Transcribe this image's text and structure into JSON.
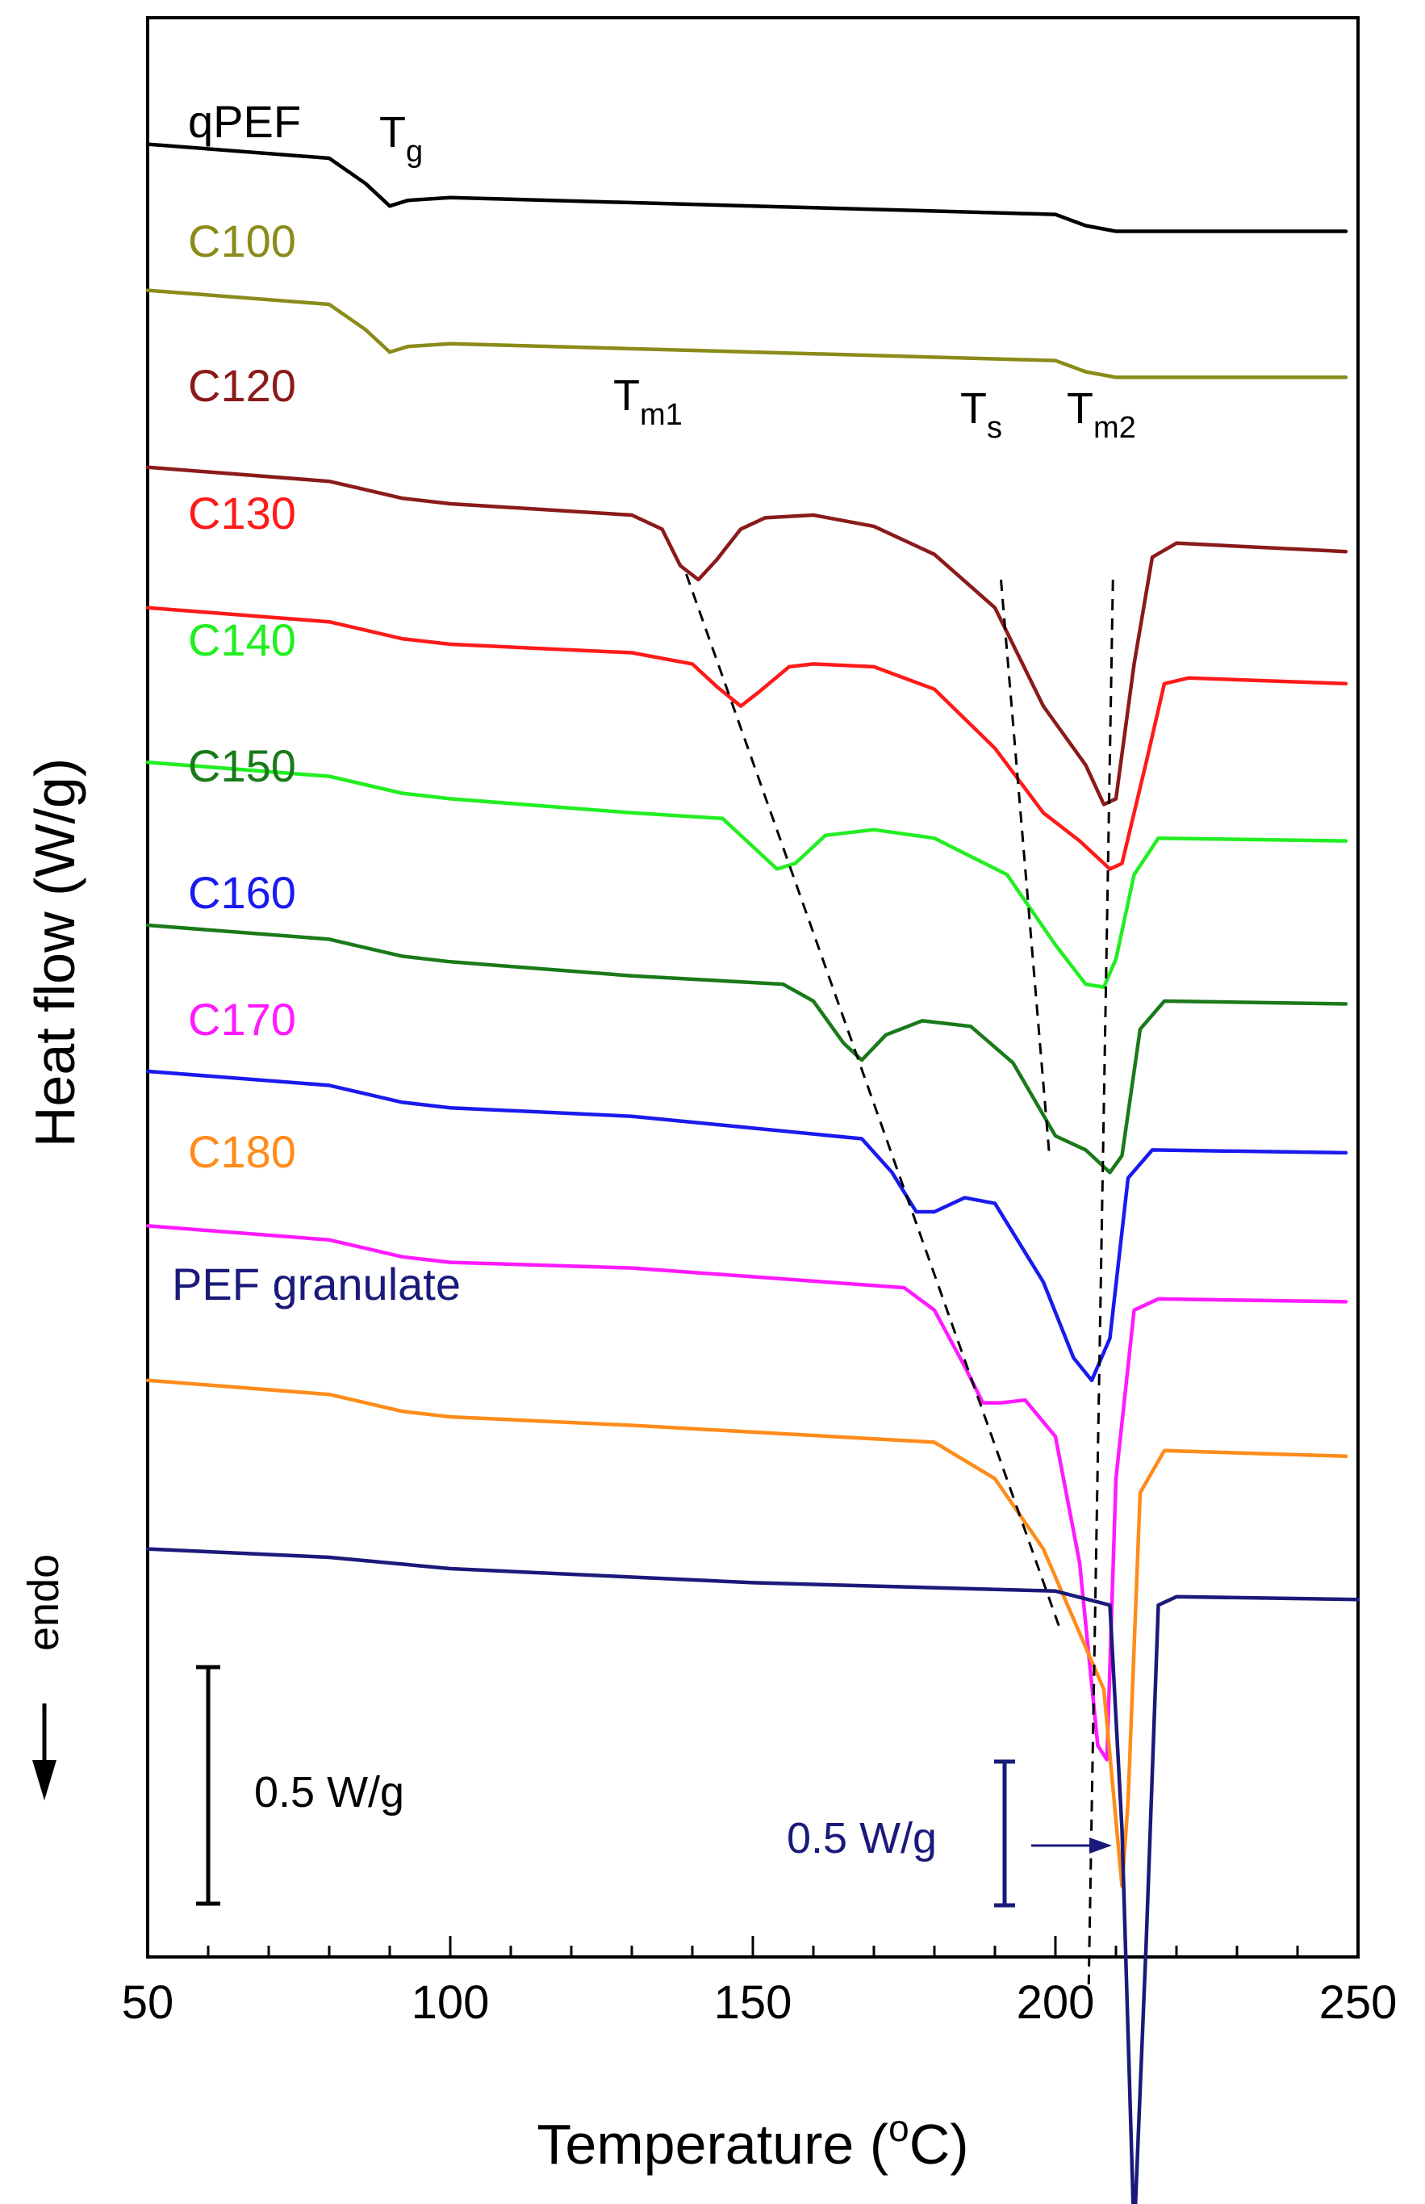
{
  "chart_data": {
    "type": "line",
    "xlabel": "Temperature (°C)",
    "xlabel_parts": {
      "main": "Temperature (",
      "sup": "o",
      "tail": "C)"
    },
    "ylabel": "Heat flow (W/g)",
    "xlim": [
      50,
      250
    ],
    "x_ticks": [
      50,
      100,
      150,
      200,
      250
    ],
    "y_ticks_shown": false,
    "grid": false,
    "legend": "none (labels placed next to each curve)",
    "series": [
      {
        "name": "qPEF",
        "color": "#000000",
        "offset": 0.0,
        "points": [
          [
            50,
            0
          ],
          [
            80,
            -0.05
          ],
          [
            86,
            -0.14
          ],
          [
            90,
            -0.22
          ],
          [
            93,
            -0.2
          ],
          [
            100,
            -0.19
          ],
          [
            150,
            -0.22
          ],
          [
            200,
            -0.25
          ],
          [
            205,
            -0.29
          ],
          [
            210,
            -0.31
          ],
          [
            248,
            -0.31
          ]
        ]
      },
      {
        "name": "C100",
        "color": "#8B8B1A",
        "offset": -0.52,
        "points": [
          [
            50,
            0
          ],
          [
            80,
            -0.05
          ],
          [
            86,
            -0.14
          ],
          [
            90,
            -0.22
          ],
          [
            93,
            -0.2
          ],
          [
            100,
            -0.19
          ],
          [
            150,
            -0.22
          ],
          [
            200,
            -0.25
          ],
          [
            205,
            -0.29
          ],
          [
            210,
            -0.31
          ],
          [
            248,
            -0.31
          ]
        ]
      },
      {
        "name": "C120",
        "color": "#8B1A1A",
        "offset": -1.15,
        "points": [
          [
            50,
            0
          ],
          [
            80,
            -0.05
          ],
          [
            86,
            -0.08
          ],
          [
            92,
            -0.11
          ],
          [
            100,
            -0.13
          ],
          [
            130,
            -0.17
          ],
          [
            135,
            -0.22
          ],
          [
            138,
            -0.35
          ],
          [
            141,
            -0.4
          ],
          [
            144,
            -0.33
          ],
          [
            148,
            -0.22
          ],
          [
            152,
            -0.18
          ],
          [
            160,
            -0.17
          ],
          [
            170,
            -0.21
          ],
          [
            180,
            -0.31
          ],
          [
            190,
            -0.5
          ],
          [
            198,
            -0.85
          ],
          [
            205,
            -1.06
          ],
          [
            208,
            -1.2
          ],
          [
            210,
            -1.18
          ],
          [
            213,
            -0.7
          ],
          [
            216,
            -0.32
          ],
          [
            220,
            -0.27
          ],
          [
            248,
            -0.3
          ]
        ]
      },
      {
        "name": "C130",
        "color": "#FF1A1A",
        "offset": -1.65,
        "points": [
          [
            50,
            0
          ],
          [
            80,
            -0.05
          ],
          [
            86,
            -0.08
          ],
          [
            92,
            -0.11
          ],
          [
            100,
            -0.13
          ],
          [
            130,
            -0.16
          ],
          [
            140,
            -0.2
          ],
          [
            144,
            -0.28
          ],
          [
            148,
            -0.35
          ],
          [
            151,
            -0.3
          ],
          [
            156,
            -0.21
          ],
          [
            160,
            -0.2
          ],
          [
            170,
            -0.21
          ],
          [
            180,
            -0.29
          ],
          [
            190,
            -0.5
          ],
          [
            198,
            -0.73
          ],
          [
            204,
            -0.83
          ],
          [
            209,
            -0.93
          ],
          [
            211,
            -0.91
          ],
          [
            215,
            -0.55
          ],
          [
            218,
            -0.27
          ],
          [
            222,
            -0.25
          ],
          [
            248,
            -0.27
          ]
        ]
      },
      {
        "name": "C140",
        "color": "#22EE22",
        "offset": -2.2,
        "points": [
          [
            50,
            0
          ],
          [
            80,
            -0.05
          ],
          [
            86,
            -0.08
          ],
          [
            92,
            -0.11
          ],
          [
            100,
            -0.13
          ],
          [
            130,
            -0.18
          ],
          [
            145,
            -0.2
          ],
          [
            150,
            -0.3
          ],
          [
            154,
            -0.38
          ],
          [
            157,
            -0.36
          ],
          [
            162,
            -0.26
          ],
          [
            170,
            -0.24
          ],
          [
            180,
            -0.27
          ],
          [
            192,
            -0.4
          ],
          [
            200,
            -0.65
          ],
          [
            205,
            -0.79
          ],
          [
            208,
            -0.8
          ],
          [
            210,
            -0.7
          ],
          [
            213,
            -0.4
          ],
          [
            217,
            -0.27
          ],
          [
            248,
            -0.28
          ]
        ]
      },
      {
        "name": "C150",
        "color": "#1A7A1A",
        "offset": -2.78,
        "points": [
          [
            50,
            0
          ],
          [
            80,
            -0.05
          ],
          [
            86,
            -0.08
          ],
          [
            92,
            -0.11
          ],
          [
            100,
            -0.13
          ],
          [
            130,
            -0.18
          ],
          [
            155,
            -0.21
          ],
          [
            160,
            -0.27
          ],
          [
            165,
            -0.42
          ],
          [
            168,
            -0.48
          ],
          [
            172,
            -0.39
          ],
          [
            178,
            -0.34
          ],
          [
            186,
            -0.36
          ],
          [
            193,
            -0.49
          ],
          [
            200,
            -0.75
          ],
          [
            205,
            -0.8
          ],
          [
            209,
            -0.88
          ],
          [
            211,
            -0.82
          ],
          [
            214,
            -0.37
          ],
          [
            218,
            -0.27
          ],
          [
            248,
            -0.28
          ]
        ]
      },
      {
        "name": "C160",
        "color": "#1A1AEE",
        "offset": -3.3,
        "points": [
          [
            50,
            0
          ],
          [
            80,
            -0.05
          ],
          [
            86,
            -0.08
          ],
          [
            92,
            -0.11
          ],
          [
            100,
            -0.13
          ],
          [
            130,
            -0.16
          ],
          [
            168,
            -0.24
          ],
          [
            173,
            -0.36
          ],
          [
            177,
            -0.5
          ],
          [
            180,
            -0.5
          ],
          [
            185,
            -0.45
          ],
          [
            190,
            -0.47
          ],
          [
            198,
            -0.75
          ],
          [
            203,
            -1.02
          ],
          [
            206,
            -1.1
          ],
          [
            209,
            -0.95
          ],
          [
            212,
            -0.38
          ],
          [
            216,
            -0.28
          ],
          [
            248,
            -0.29
          ]
        ]
      },
      {
        "name": "C170",
        "color": "#FF1AFF",
        "offset": -3.85,
        "points": [
          [
            50,
            0
          ],
          [
            80,
            -0.05
          ],
          [
            86,
            -0.08
          ],
          [
            92,
            -0.11
          ],
          [
            100,
            -0.13
          ],
          [
            130,
            -0.15
          ],
          [
            175,
            -0.22
          ],
          [
            180,
            -0.3
          ],
          [
            185,
            -0.5
          ],
          [
            188,
            -0.63
          ],
          [
            191,
            -0.63
          ],
          [
            195,
            -0.62
          ],
          [
            200,
            -0.75
          ],
          [
            204,
            -1.2
          ],
          [
            207,
            -1.85
          ],
          [
            208.5,
            -1.9
          ],
          [
            210,
            -0.9
          ],
          [
            213,
            -0.3
          ],
          [
            217,
            -0.26
          ],
          [
            248,
            -0.27
          ]
        ]
      },
      {
        "name": "C180",
        "color": "#FF8C1A",
        "offset": -4.4,
        "points": [
          [
            50,
            0
          ],
          [
            80,
            -0.05
          ],
          [
            86,
            -0.08
          ],
          [
            92,
            -0.11
          ],
          [
            100,
            -0.13
          ],
          [
            130,
            -0.16
          ],
          [
            180,
            -0.22
          ],
          [
            190,
            -0.35
          ],
          [
            198,
            -0.6
          ],
          [
            204,
            -0.9
          ],
          [
            208,
            -1.1
          ],
          [
            211,
            -1.8
          ],
          [
            212,
            -1.5
          ],
          [
            214,
            -0.4
          ],
          [
            218,
            -0.25
          ],
          [
            248,
            -0.27
          ]
        ]
      },
      {
        "name": "PEF granulate",
        "color": "#1A1A7A",
        "offset": -5.0,
        "points": [
          [
            50,
            0
          ],
          [
            80,
            -0.03
          ],
          [
            100,
            -0.07
          ],
          [
            150,
            -0.12
          ],
          [
            200,
            -0.15
          ],
          [
            209,
            -0.2
          ],
          [
            211,
            -1.0
          ],
          [
            213,
            -2.45
          ],
          [
            215,
            -1.4
          ],
          [
            217,
            -0.2
          ],
          [
            220,
            -0.17
          ],
          [
            250,
            -0.18
          ]
        ]
      }
    ],
    "annotations": {
      "tg": {
        "main": "T",
        "sub": "g"
      },
      "tm1": {
        "main": "T",
        "sub": "m1"
      },
      "ts": {
        "main": "T",
        "sub": "s"
      },
      "tm2": {
        "main": "T",
        "sub": "m2"
      },
      "endo": "endo",
      "scale_bar_1": "0.5 W/g",
      "scale_bar_2": "0.5 W/g"
    },
    "dashed_guides": [
      {
        "name": "Tm1 trend",
        "from": [
          139,
          -1.53
        ],
        "to": [
          201,
          -5.3
        ]
      },
      {
        "name": "Ts trend",
        "from": [
          191,
          -1.55
        ],
        "to": [
          199,
          -3.6
        ]
      },
      {
        "name": "Tm2 trend",
        "from": [
          209.5,
          -1.55
        ],
        "to": [
          205.5,
          -6.55
        ]
      }
    ]
  }
}
